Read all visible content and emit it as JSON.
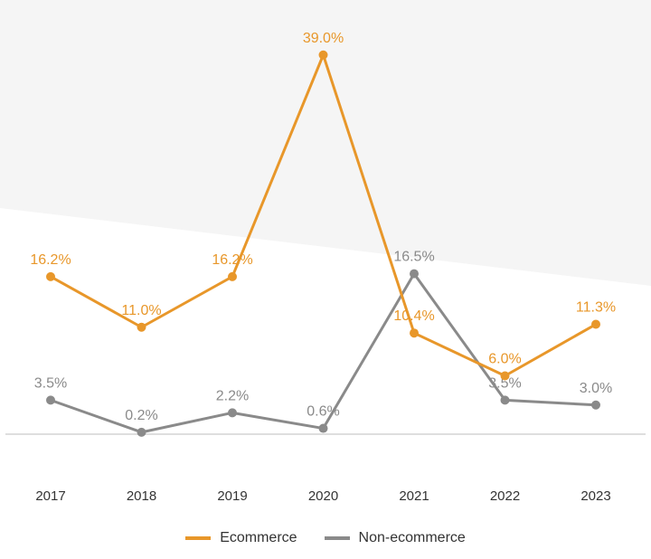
{
  "chart_data": {
    "type": "line",
    "categories": [
      "2017",
      "2018",
      "2019",
      "2020",
      "2021",
      "2022",
      "2023"
    ],
    "series": [
      {
        "name": "Ecommerce",
        "color": "#e8972a",
        "values": [
          16.2,
          11.0,
          16.2,
          39.0,
          10.4,
          6.0,
          11.3
        ],
        "labels": [
          "16.2%",
          "11.0%",
          "16.2%",
          "39.0%",
          "10.4%",
          "6.0%",
          "11.3%"
        ]
      },
      {
        "name": "Non-ecommerce",
        "color": "#8a8a8a",
        "values": [
          3.5,
          0.2,
          2.2,
          0.6,
          16.5,
          3.5,
          3.0
        ],
        "labels": [
          "3.5%",
          "0.2%",
          "2.2%",
          "0.6%",
          "16.5%",
          "3.5%",
          "3.0%"
        ]
      }
    ],
    "title": "",
    "xlabel": "",
    "ylabel": "",
    "ylim": [
      0,
      40
    ],
    "grid": false,
    "legend_position": "bottom-center"
  }
}
